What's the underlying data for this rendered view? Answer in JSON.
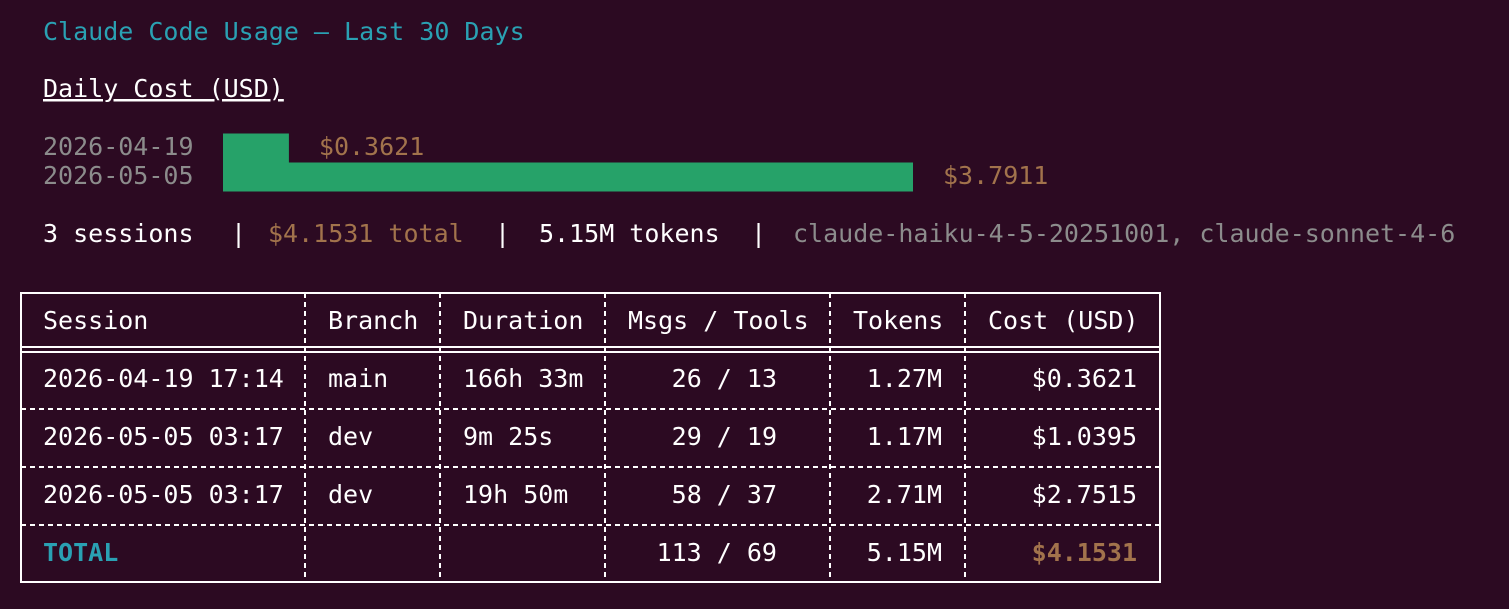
{
  "title": "Claude Code Usage — Last 30 Days",
  "daily_cost": {
    "title": "Daily Cost (USD)",
    "dates": [
      "2026-04-19",
      "2026-05-05"
    ],
    "values": [
      0.3621,
      3.7911
    ],
    "value_labels": [
      "$0.3621",
      "$3.7911"
    ],
    "color": "#26a269"
  },
  "summary": {
    "sessions": "3 sessions",
    "total": "$4.1531 total",
    "tokens": "5.15M tokens",
    "models": "claude-haiku-4-5-20251001, claude-sonnet-4-6"
  },
  "table": {
    "header": [
      "Session",
      "Branch",
      "Duration",
      "Msgs / Tools",
      "Tokens",
      "Cost (USD)"
    ],
    "rows": [
      [
        "2026-04-19 17:14",
        "main",
        "166h 33m",
        "26 / 13",
        "1.27M",
        "$0.3621"
      ],
      [
        "2026-05-05 03:17",
        "dev",
        "9m 25s",
        "29 / 19",
        "1.17M",
        "$1.0395"
      ],
      [
        "2026-05-05 03:17",
        "dev",
        "19h 50m",
        "58 / 37",
        "2.71M",
        "$2.7515"
      ]
    ],
    "total": {
      "label": "TOTAL",
      "msgs_tools": "113 / 69",
      "tokens": "5.15M",
      "cost": "$4.1531"
    }
  }
}
